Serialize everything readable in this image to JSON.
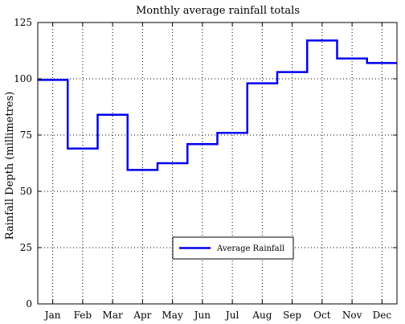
{
  "chart_data": {
    "type": "line",
    "style": "step",
    "title": "Monthly average rainfall totals",
    "xlabel": "",
    "ylabel": "Rainfall Depth (millimetres)",
    "categories": [
      "Jan",
      "Feb",
      "Mar",
      "Apr",
      "May",
      "Jun",
      "Jul",
      "Aug",
      "Sep",
      "Oct",
      "Nov",
      "Dec"
    ],
    "series": [
      {
        "name": "Average Rainfall",
        "values": [
          99.5,
          69,
          84,
          59.5,
          62.5,
          71,
          76,
          98,
          103,
          117,
          109,
          107
        ],
        "color": "#0000ee"
      }
    ],
    "ylim": [
      0,
      125
    ],
    "yticks": [
      "0",
      "25",
      "50",
      "75",
      "100",
      "125"
    ],
    "grid": true,
    "legend_position": "bottom-center"
  }
}
